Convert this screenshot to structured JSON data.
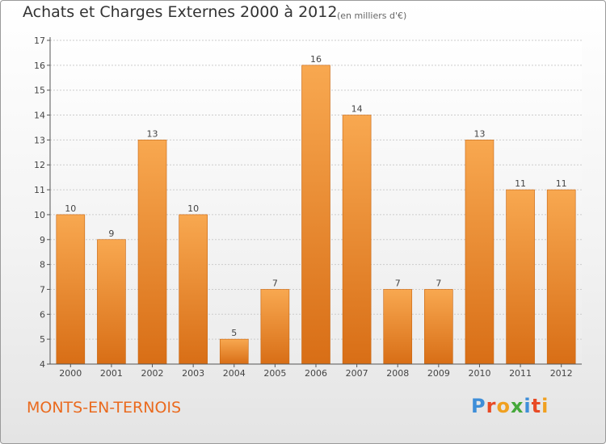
{
  "title": "Achats et Charges Externes 2000 à 2012",
  "subtitle": "(en milliers d'€)",
  "location": "MONTS-EN-TERNOIS",
  "logo": {
    "letters": [
      "P",
      "r",
      "o",
      "x",
      "i",
      "t",
      "i"
    ],
    "colors": [
      "#3e8ed8",
      "#e84a25",
      "#f0a020",
      "#45a83a",
      "#3e8ed8",
      "#e84a25",
      "#f0a020"
    ]
  },
  "colors": {
    "bar_top": "#f8a850",
    "bar_bottom": "#d86e16",
    "axis": "#555555",
    "grid": "#cccccc"
  },
  "chart_data": {
    "type": "bar",
    "title": "Achats et Charges Externes 2000 à 2012",
    "subtitle": "(en milliers d'€)",
    "xlabel": "",
    "ylabel": "",
    "categories": [
      "2000",
      "2001",
      "2002",
      "2003",
      "2004",
      "2005",
      "2006",
      "2007",
      "2008",
      "2009",
      "2010",
      "2011",
      "2012"
    ],
    "values": [
      10,
      9,
      13,
      10,
      5,
      7,
      16,
      14,
      7,
      7,
      13,
      11,
      11
    ],
    "data_labels": [
      "10",
      "9",
      "13",
      "10",
      "5",
      "7",
      "16",
      "14",
      "7",
      "7",
      "13",
      "11",
      "11"
    ],
    "ylim": [
      4,
      17
    ],
    "yticks": [
      "4",
      "5",
      "6",
      "7",
      "8",
      "9",
      "10",
      "11",
      "12",
      "13",
      "14",
      "15",
      "16",
      "17"
    ],
    "grid": "dotted horizontal",
    "legend": "none"
  }
}
